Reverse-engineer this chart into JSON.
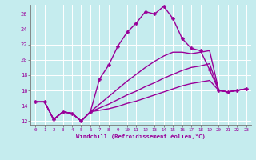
{
  "xlabel": "Windchill (Refroidissement éolien,°C)",
  "background_color": "#c5ecee",
  "grid_color": "#aadddd",
  "line_color": "#990099",
  "xlim_min": -0.5,
  "xlim_max": 23.5,
  "ylim_min": 11.5,
  "ylim_max": 27.2,
  "yticks": [
    12,
    14,
    16,
    18,
    20,
    22,
    24,
    26
  ],
  "xticks": [
    0,
    1,
    2,
    3,
    4,
    5,
    6,
    7,
    8,
    9,
    10,
    11,
    12,
    13,
    14,
    15,
    16,
    17,
    18,
    19,
    20,
    21,
    22,
    23
  ],
  "series": [
    {
      "x": [
        0,
        1,
        2,
        3,
        4,
        5,
        6,
        7,
        8,
        9,
        10,
        11,
        12,
        13,
        14,
        15,
        16,
        17,
        18,
        19,
        20,
        21,
        22,
        23
      ],
      "y": [
        14.5,
        14.5,
        12.2,
        13.2,
        13.0,
        12.0,
        13.2,
        17.5,
        19.3,
        21.8,
        23.6,
        24.8,
        26.3,
        26.0,
        27.0,
        25.4,
        22.8,
        21.5,
        21.2,
        18.7,
        16.0,
        15.8,
        16.0,
        16.2
      ],
      "marker": "P",
      "markersize": 2.8,
      "linewidth": 1.0,
      "linestyle": "-"
    },
    {
      "x": [
        0,
        1,
        2,
        3,
        4,
        5,
        6,
        7,
        8,
        9,
        10,
        11,
        12,
        13,
        14,
        15,
        16,
        17,
        18,
        19,
        20,
        21,
        22,
        23
      ],
      "y": [
        14.5,
        14.5,
        12.2,
        13.2,
        13.0,
        12.0,
        13.2,
        14.2,
        15.2,
        16.2,
        17.2,
        18.1,
        19.0,
        19.8,
        20.5,
        21.0,
        21.0,
        20.8,
        21.0,
        21.2,
        16.0,
        15.8,
        16.0,
        16.2
      ],
      "marker": null,
      "markersize": 0,
      "linewidth": 1.0,
      "linestyle": "-"
    },
    {
      "x": [
        0,
        1,
        2,
        3,
        4,
        5,
        6,
        7,
        8,
        9,
        10,
        11,
        12,
        13,
        14,
        15,
        16,
        17,
        18,
        19,
        20,
        21,
        22,
        23
      ],
      "y": [
        14.5,
        14.5,
        12.2,
        13.2,
        13.0,
        12.0,
        13.2,
        13.7,
        14.2,
        14.8,
        15.4,
        15.9,
        16.5,
        17.0,
        17.6,
        18.1,
        18.6,
        19.0,
        19.2,
        19.5,
        16.0,
        15.8,
        16.0,
        16.2
      ],
      "marker": null,
      "markersize": 0,
      "linewidth": 1.0,
      "linestyle": "-"
    },
    {
      "x": [
        0,
        1,
        2,
        3,
        4,
        5,
        6,
        7,
        8,
        9,
        10,
        11,
        12,
        13,
        14,
        15,
        16,
        17,
        18,
        19,
        20,
        21,
        22,
        23
      ],
      "y": [
        14.5,
        14.5,
        12.2,
        13.2,
        13.0,
        12.0,
        13.2,
        13.4,
        13.6,
        13.9,
        14.3,
        14.6,
        15.0,
        15.4,
        15.8,
        16.2,
        16.6,
        16.9,
        17.1,
        17.3,
        16.0,
        15.8,
        16.0,
        16.2
      ],
      "marker": null,
      "markersize": 0,
      "linewidth": 1.0,
      "linestyle": "-"
    }
  ]
}
